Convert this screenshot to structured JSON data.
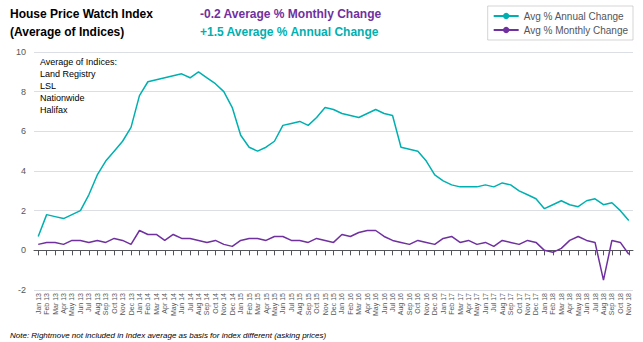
{
  "chart_data": {
    "type": "line",
    "title": "House Price Watch Index",
    "subtitle": "(Average of Indices)",
    "annotations": [
      {
        "text": "-0.2 Average % Monthly Change",
        "color": "#7030a0"
      },
      {
        "text": "+1.5 Average % Annual Change",
        "color": "#00afaf"
      },
      {
        "text": "Average of Indices:\nLand Registry\nLSL\nNationwide\nHalifax"
      },
      {
        "text": "Note: Rightmove not included in Index average as basis for index different (asking prices)"
      }
    ],
    "categories": [
      "Jan 13",
      "Feb 13",
      "Mar 13",
      "Apr 13",
      "May 13",
      "Jun 13",
      "Jul 13",
      "Aug 13",
      "Sep 13",
      "Oct 13",
      "Nov 13",
      "Dec 13",
      "Jan 14",
      "Feb 14",
      "Mar 14",
      "Apr 14",
      "May 14",
      "Jun 14",
      "Jul 14",
      "Aug 14",
      "Sep 14",
      "Oct 14",
      "Nov 14",
      "Dec 14",
      "Jan 15",
      "Feb 15",
      "Mar 15",
      "Apr 15",
      "May 15",
      "Jun 15",
      "Jul 15",
      "Aug 15",
      "Sep 15",
      "Oct 15",
      "Nov 15",
      "Dec 15",
      "Jan 16",
      "Feb 16",
      "Mar 16",
      "Apr 16",
      "May 16",
      "Jun 16",
      "Jul 16",
      "Aug 16",
      "Sep 16",
      "Oct 16",
      "Nov 16",
      "Dec 16",
      "Jan 17",
      "Feb 17",
      "Mar 17",
      "Apr 17",
      "May 17",
      "Jun 17",
      "Jul 17",
      "Aug 17",
      "Sep 17",
      "Oct 17",
      "Nov 17",
      "Dec 17",
      "Jan 18",
      "Feb 18",
      "Mar 18",
      "Apr 18",
      "May 18",
      "Jun 18",
      "Jul 18",
      "Aug 18",
      "Sep 18",
      "Oct 18",
      "Nov 18"
    ],
    "series": [
      {
        "name": "Avg % Annual Change",
        "color": "#00b0b0",
        "values": [
          0.7,
          1.8,
          1.7,
          1.6,
          1.8,
          2.0,
          2.8,
          3.8,
          4.5,
          5.0,
          5.5,
          6.2,
          7.8,
          8.5,
          8.6,
          8.7,
          8.8,
          8.9,
          8.7,
          9.0,
          8.7,
          8.4,
          8.0,
          7.2,
          5.8,
          5.2,
          5.0,
          5.2,
          5.5,
          6.3,
          6.4,
          6.5,
          6.3,
          6.7,
          7.2,
          7.1,
          6.9,
          6.8,
          6.7,
          6.9,
          7.1,
          6.9,
          6.8,
          5.2,
          5.1,
          5.0,
          4.5,
          3.8,
          3.5,
          3.3,
          3.2,
          3.2,
          3.2,
          3.3,
          3.2,
          3.4,
          3.3,
          3.0,
          2.8,
          2.6,
          2.1,
          2.3,
          2.5,
          2.3,
          2.2,
          2.5,
          2.6,
          2.3,
          2.4,
          2.0,
          1.5
        ]
      },
      {
        "name": "Avg % Monthly Change",
        "color": "#7030a0",
        "values": [
          0.3,
          0.4,
          0.4,
          0.3,
          0.5,
          0.5,
          0.4,
          0.5,
          0.4,
          0.6,
          0.5,
          0.3,
          1.0,
          0.8,
          0.8,
          0.5,
          0.8,
          0.6,
          0.6,
          0.5,
          0.4,
          0.5,
          0.3,
          0.2,
          0.5,
          0.6,
          0.6,
          0.5,
          0.7,
          0.7,
          0.5,
          0.5,
          0.4,
          0.6,
          0.5,
          0.4,
          0.8,
          0.7,
          0.9,
          1.0,
          1.0,
          0.7,
          0.5,
          0.4,
          0.3,
          0.5,
          0.4,
          0.3,
          0.6,
          0.7,
          0.4,
          0.5,
          0.3,
          0.4,
          0.2,
          0.5,
          0.4,
          0.3,
          0.5,
          0.4,
          0.0,
          -0.1,
          0.1,
          0.5,
          0.7,
          0.5,
          0.4,
          -1.5,
          0.5,
          0.4,
          -0.2
        ]
      }
    ],
    "ylim": [
      -2,
      10
    ],
    "yticks": [
      -2,
      0,
      2,
      4,
      6,
      8,
      10
    ],
    "grid": true,
    "legend": "upper right"
  }
}
